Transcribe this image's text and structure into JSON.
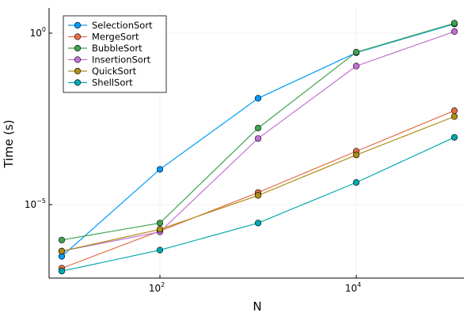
{
  "chart_data": {
    "type": "line",
    "xlabel": "N",
    "ylabel": "Time (s)",
    "x_scale": "log10",
    "y_scale": "log10",
    "grid": true,
    "legend_position": "top-left",
    "x": [
      10,
      100,
      1000,
      10000,
      100000
    ],
    "x_ticks": [
      {
        "base": "10",
        "exp": "2",
        "value": 100
      },
      {
        "base": "10",
        "exp": "4",
        "value": 10000
      }
    ],
    "y_ticks": [
      {
        "base": "10",
        "exp": "0",
        "value": 1
      },
      {
        "base": "10",
        "exp": "−5",
        "value": 1e-05
      }
    ],
    "series": [
      {
        "name": "SelectionSort",
        "color": "#009AFA",
        "values": [
          3.1e-07,
          0.000107,
          0.0126,
          0.27,
          1.86
        ]
      },
      {
        "name": "MergeSort",
        "color": "#E26F46",
        "values": [
          1.4e-07,
          1.7e-06,
          2.25e-05,
          0.00036,
          0.0055
        ]
      },
      {
        "name": "BubbleSort",
        "color": "#3EA44E",
        "values": [
          9.3e-07,
          2.9e-06,
          0.00171,
          0.28,
          1.95
        ]
      },
      {
        "name": "InsertionSort",
        "color": "#C271D2",
        "values": [
          4.4e-07,
          1.6e-06,
          0.00085,
          0.11,
          1.12
        ]
      },
      {
        "name": "QuickSort",
        "color": "#AC8E18",
        "values": [
          4.4e-07,
          1.9e-06,
          1.85e-05,
          0.00028,
          0.0037
        ]
      },
      {
        "name": "ShellSort",
        "color": "#00A9AD",
        "values": [
          1.15e-07,
          4.7e-07,
          2.9e-06,
          4.42e-05,
          0.00092
        ]
      }
    ]
  }
}
